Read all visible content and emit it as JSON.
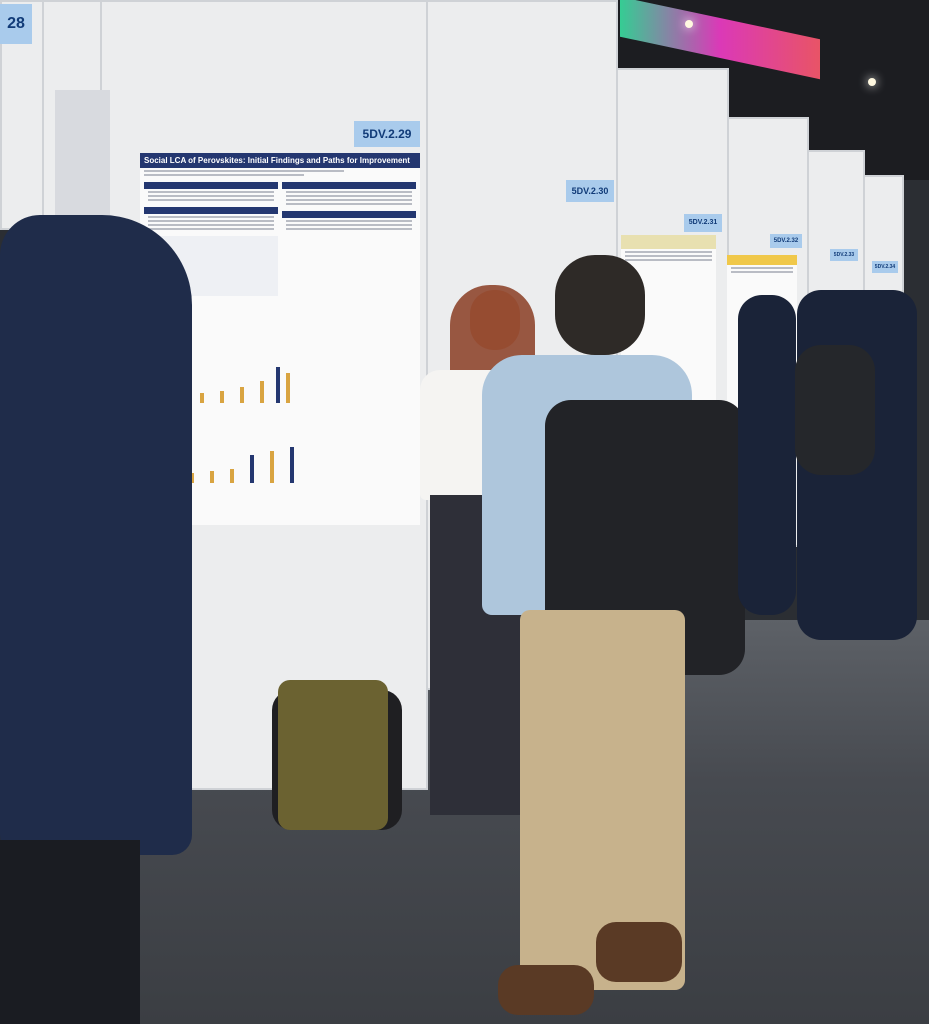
{
  "booths": [
    {
      "id": "booth-28",
      "label": "28"
    },
    {
      "id": "booth-229",
      "label": "5DV.2.29"
    },
    {
      "id": "booth-230",
      "label": "5DV.2.30"
    },
    {
      "id": "booth-231",
      "label": "5DV.2.31"
    },
    {
      "id": "booth-232",
      "label": "5DV.2.32"
    },
    {
      "id": "booth-233",
      "label": "5DV.2.33"
    },
    {
      "id": "booth-234",
      "label": "5DV.2.34"
    }
  ],
  "poster": {
    "title": "Social LCA of Perovskites: Initial Findings and Paths for Improvement"
  },
  "colors": {
    "label_bg": "#a9cbec",
    "label_text": "#113b78",
    "poster_header": "#243770",
    "panel": "#ecedee",
    "floor": "#4a4d53"
  }
}
